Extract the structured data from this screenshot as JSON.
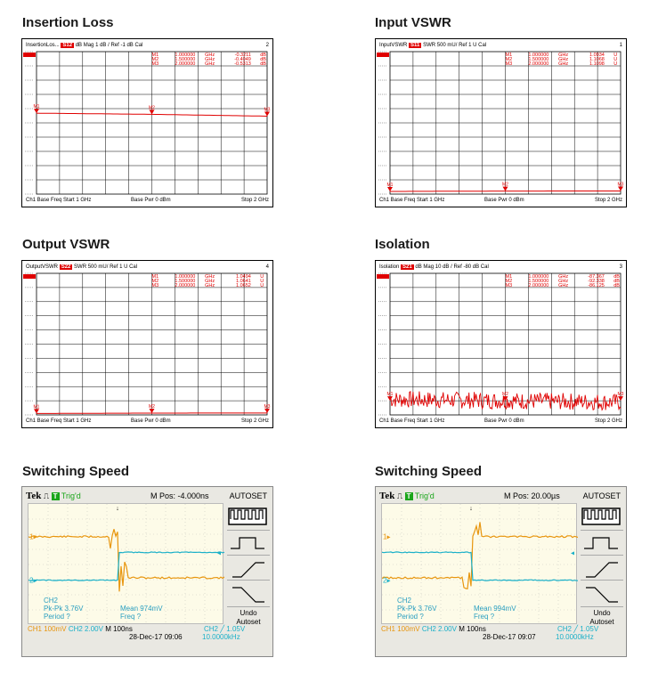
{
  "headings": {
    "insertion_loss": "Insertion Loss",
    "input_vswr": "Input VSWR",
    "output_vswr": "Output VSWR",
    "isolation": "Isolation",
    "switching1": "Switching Speed",
    "switching2": "Switching Speed"
  },
  "colors": {
    "trace": "#e00000",
    "grid": "#000000",
    "ch1": "#e8960f",
    "ch2": "#1ab0c8"
  },
  "chart_data": [
    {
      "type": "line",
      "title": "Insertion Loss",
      "header": {
        "name": "InsertionLos...",
        "param": "S12",
        "format": "dB Mag",
        "scale": "1 dB /",
        "ref": "Ref -1 dB",
        "cal": "Cal",
        "channel": "2"
      },
      "markers": [
        {
          "id": "M1",
          "freq": "1.000000",
          "unit": "GHz",
          "value": "-0.3211",
          "vunit": "dB"
        },
        {
          "id": "M2",
          "freq": "1.500000",
          "unit": "GHz",
          "value": "-0.4049",
          "vunit": "dB"
        },
        {
          "id": "M3",
          "freq": "2.000000",
          "unit": "GHz",
          "value": "-0.5313",
          "vunit": "dB"
        }
      ],
      "x": [
        1.0,
        1.5,
        2.0
      ],
      "y": [
        -0.32,
        -0.4,
        -0.53
      ],
      "ylim": [
        -6,
        4
      ],
      "footer": {
        "left": "Ch1  Base Freq  Start  1 GHz",
        "mid": "Base Pwr  0 dBm",
        "right": "Stop  2 GHz"
      }
    },
    {
      "type": "line",
      "title": "Input VSWR",
      "header": {
        "name": "InputVSWR",
        "param": "S11",
        "format": "SWR",
        "scale": "500 mU/",
        "ref": "Ref 1 U",
        "cal": "Cal",
        "channel": "1"
      },
      "markers": [
        {
          "id": "M1",
          "freq": "1.000000",
          "unit": "GHz",
          "value": "1.0934",
          "vunit": "U"
        },
        {
          "id": "M2",
          "freq": "1.500000",
          "unit": "GHz",
          "value": "1.1068",
          "vunit": "U"
        },
        {
          "id": "M3",
          "freq": "2.000000",
          "unit": "GHz",
          "value": "1.1098",
          "vunit": "U"
        }
      ],
      "x": [
        1.0,
        1.5,
        2.0
      ],
      "y": [
        1.0934,
        1.1068,
        1.1098
      ],
      "ylim": [
        1,
        6
      ],
      "footer": {
        "left": "Ch1  Base Freq  Start  1 GHz",
        "mid": "Base Pwr  0 dBm",
        "right": "Stop  2 GHz"
      }
    },
    {
      "type": "line",
      "title": "Output VSWR",
      "header": {
        "name": "OutputVSWR",
        "param": "S22",
        "format": "SWR",
        "scale": "500 mU/",
        "ref": "Ref 1 U",
        "cal": "Cal",
        "channel": "4"
      },
      "markers": [
        {
          "id": "M1",
          "freq": "1.000000",
          "unit": "GHz",
          "value": "1.0494",
          "vunit": "U"
        },
        {
          "id": "M2",
          "freq": "1.500000",
          "unit": "GHz",
          "value": "1.0641",
          "vunit": "U"
        },
        {
          "id": "M3",
          "freq": "2.000000",
          "unit": "GHz",
          "value": "1.0652",
          "vunit": "U"
        }
      ],
      "x": [
        1.0,
        1.5,
        2.0
      ],
      "y": [
        1.0494,
        1.0641,
        1.0652
      ],
      "ylim": [
        1,
        6
      ],
      "footer": {
        "left": "Ch1  Base Freq  Start  1 GHz",
        "mid": "Base Pwr  0 dBm",
        "right": "Stop  2 GHz"
      }
    },
    {
      "type": "line",
      "title": "Isolation",
      "header": {
        "name": "Isolation",
        "param": "S21",
        "format": "dB Mag",
        "scale": "10 dB /",
        "ref": "Ref -80 dB",
        "cal": "Cal",
        "channel": "3"
      },
      "markers": [
        {
          "id": "M1",
          "freq": "1.000000",
          "unit": "GHz",
          "value": "-87.367",
          "vunit": "dB"
        },
        {
          "id": "M2",
          "freq": "1.500000",
          "unit": "GHz",
          "value": "-92.338",
          "vunit": "dB"
        },
        {
          "id": "M3",
          "freq": "2.000000",
          "unit": "GHz",
          "value": "-86.125",
          "vunit": "dB"
        }
      ],
      "x": [
        1.0,
        2.0
      ],
      "y_mean": -90,
      "y_spread": 6,
      "ylim": [
        -100,
        0
      ],
      "footer": {
        "left": "Ch1  Base Freq  Start  1 GHz",
        "mid": "Base Pwr  0 dBm",
        "right": "Stop  2 GHz"
      }
    }
  ],
  "scopes": [
    {
      "brand": "Tek",
      "trig": "Trig'd",
      "mpos": "M Pos: -4.000ns",
      "autoset": "AUTOSET",
      "undo": "Undo",
      "autoset2": "Autoset",
      "ch2_label": "CH2",
      "pkpk": "Pk-Pk 3.76V",
      "period": "Period ?",
      "mean": "Mean 974mV",
      "freq": "Freq ?",
      "ch1_scale": "CH1  100mV",
      "ch2_scale": "CH2  2.00V",
      "timebase": "M 100ns",
      "date": "28-Dec-17 09:06",
      "trig_level": "CH2 ╱ 1.05V",
      "trig_freq": "10.0000kHz",
      "edge": "falling"
    },
    {
      "brand": "Tek",
      "trig": "Trig'd",
      "mpos": "M Pos: 20.00µs",
      "autoset": "AUTOSET",
      "undo": "Undo",
      "autoset2": "Autoset",
      "ch2_label": "CH2",
      "pkpk": "Pk-Pk 3.76V",
      "period": "Period ?",
      "mean": "Mean 994mV",
      "freq": "Freq ?",
      "ch1_scale": "CH1  100mV",
      "ch2_scale": "CH2  2.00V",
      "timebase": "M 100ns",
      "date": "28-Dec-17 09:07",
      "trig_level": "CH2 ╱ 1.05V",
      "trig_freq": "10.0000kHz",
      "edge": "rising"
    }
  ]
}
